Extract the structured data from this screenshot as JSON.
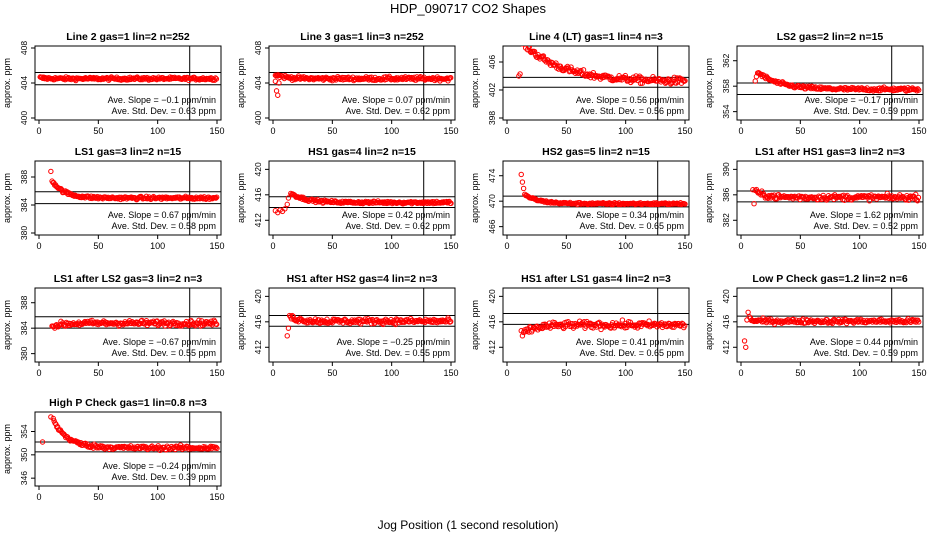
{
  "title": "HDP_090717  CO2 Shapes",
  "xlabel": "Jog Position (1 second resolution)",
  "ylabel": "approx. ppm",
  "slope_prefix": "Ave. Slope = ",
  "slope_unit": " ppm/min",
  "sd_prefix": "Ave. Std. Dev. = ",
  "sd_unit": "  ppm",
  "colors": {
    "points": "#ff0000",
    "axes": "#000000"
  },
  "chart_data": [
    {
      "type": "scatter",
      "title": "Line 2 gas=1 lin=2 n=252",
      "xlim": [
        0,
        150
      ],
      "xticks": [
        0,
        50,
        100,
        150
      ],
      "ylim": [
        400,
        408
      ],
      "yticks": [
        "400",
        "404",
        "408"
      ],
      "hlines": [
        405.2,
        403.8
      ],
      "vline": 127,
      "slope": "−0.1",
      "sd": "0.63",
      "shape": {
        "start": 1,
        "end": 150,
        "base": 404.5,
        "initial": 404.6,
        "decay": 5,
        "noise": 0.12
      }
    },
    {
      "type": "scatter",
      "title": "Line 3 gas=1 lin=3 n=252",
      "xlim": [
        0,
        150
      ],
      "xticks": [
        0,
        50,
        100,
        150
      ],
      "ylim": [
        400,
        408
      ],
      "yticks": [
        "400",
        "404",
        "408"
      ],
      "hlines": [
        405.2,
        403.8
      ],
      "vline": 127,
      "slope": "0.07",
      "sd": "0.62",
      "shape": {
        "start": 2,
        "end": 150,
        "base": 404.5,
        "initial": 405.0,
        "decay": 8,
        "noise": 0.15,
        "pre": [
          [
            2,
            404.2
          ],
          [
            3,
            403.1
          ],
          [
            4,
            402.6
          ],
          [
            5,
            404.0
          ]
        ]
      }
    },
    {
      "type": "scatter",
      "title": "Line 4 (LT) gas=1 lin=4 n=3",
      "xlim": [
        0,
        150
      ],
      "xticks": [
        0,
        50,
        100,
        150
      ],
      "ylim": [
        398,
        408
      ],
      "yticks": [
        "398",
        "402",
        "406"
      ],
      "hlines": [
        403.8,
        402.4
      ],
      "vline": 127,
      "slope": "0.56",
      "sd": "0.56",
      "shape": {
        "start": 12,
        "end": 150,
        "base": 403.2,
        "initial": 409,
        "decay": 32,
        "noise": 0.35,
        "pre": [
          [
            10,
            404.0
          ],
          [
            11,
            404.3
          ]
        ]
      }
    },
    {
      "type": "scatter",
      "title": "LS2 gas=2 lin=2 n=15",
      "xlim": [
        0,
        150
      ],
      "xticks": [
        0,
        50,
        100,
        150
      ],
      "ylim": [
        353,
        364
      ],
      "yticks": [
        "354",
        "358",
        "362"
      ],
      "hlines": [
        358.5,
        356.7
      ],
      "vline": 127,
      "slope": "−0.17",
      "sd": "0.59",
      "shape": {
        "start": 14,
        "end": 150,
        "base": 357.5,
        "initial": 360.2,
        "decay": 18,
        "noise": 0.2,
        "pre": [
          [
            12,
            358.8
          ],
          [
            13,
            359.5
          ]
        ]
      }
    },
    {
      "type": "scatter",
      "title": "LS1 gas=3 lin=2 n=15",
      "xlim": [
        0,
        150
      ],
      "xticks": [
        0,
        50,
        100,
        150
      ],
      "ylim": [
        380,
        390
      ],
      "yticks": [
        "380",
        "384",
        "388"
      ],
      "hlines": [
        385.9,
        384.2
      ],
      "vline": 127,
      "slope": "0.67",
      "sd": "0.58",
      "shape": {
        "start": 11,
        "end": 150,
        "base": 385.0,
        "initial": 387.5,
        "decay": 10,
        "noise": 0.15,
        "pre": [
          [
            10,
            388.8
          ]
        ]
      }
    },
    {
      "type": "scatter",
      "title": "HS1 gas=4 lin=2 n=15",
      "xlim": [
        0,
        150
      ],
      "xticks": [
        0,
        50,
        100,
        150
      ],
      "ylim": [
        410,
        421
      ],
      "yticks": [
        "412",
        "416",
        "420"
      ],
      "hlines": [
        415.7,
        414.0
      ],
      "vline": 127,
      "slope": "0.42",
      "sd": "0.62",
      "shape": {
        "start": 15,
        "end": 150,
        "base": 414.8,
        "initial": 416.3,
        "decay": 12,
        "noise": 0.15,
        "pre": [
          [
            2,
            413.5
          ],
          [
            4,
            413.2
          ],
          [
            6,
            413.6
          ],
          [
            8,
            413.4
          ],
          [
            10,
            413.8
          ],
          [
            12,
            414.5
          ],
          [
            13,
            415.5
          ]
        ]
      }
    },
    {
      "type": "scatter",
      "title": "HS2 gas=5 lin=2 n=15",
      "xlim": [
        0,
        150
      ],
      "xticks": [
        0,
        50,
        100,
        150
      ],
      "ylim": [
        465,
        476
      ],
      "yticks": [
        "466",
        "470",
        "474"
      ],
      "hlines": [
        470.8,
        469.1
      ],
      "vline": 127,
      "slope": "0.34",
      "sd": "0.65",
      "shape": {
        "start": 15,
        "end": 150,
        "base": 469.6,
        "initial": 471.0,
        "decay": 12,
        "noise": 0.12,
        "pre": [
          [
            12,
            474.2
          ],
          [
            13,
            473.0
          ],
          [
            14,
            472.0
          ]
        ]
      }
    },
    {
      "type": "scatter",
      "title": "LS1 after HS1 gas=3 lin=2 n=3",
      "xlim": [
        0,
        150
      ],
      "xticks": [
        0,
        50,
        100,
        150
      ],
      "ylim": [
        380,
        391
      ],
      "yticks": [
        "382",
        "386",
        "390"
      ],
      "hlines": [
        386.6,
        384.9
      ],
      "vline": 127,
      "slope": "1.62",
      "sd": "0.52",
      "shape": {
        "start": 13,
        "end": 150,
        "base": 385.6,
        "initial": 386.4,
        "decay": 8,
        "noise": 0.3,
        "pre": [
          [
            10,
            386.8
          ],
          [
            11,
            384.6
          ],
          [
            12,
            386.7
          ]
        ]
      }
    },
    {
      "type": "scatter",
      "title": "LS1 after LS2 gas=3 lin=2 n=3",
      "xlim": [
        0,
        150
      ],
      "xticks": [
        0,
        50,
        100,
        150
      ],
      "ylim": [
        379,
        390
      ],
      "yticks": [
        "380",
        "384",
        "388"
      ],
      "hlines": [
        385.8,
        384.0
      ],
      "vline": 127,
      "slope": "−0.67",
      "sd": "0.55",
      "shape": {
        "start": 11,
        "end": 150,
        "base": 384.8,
        "initial": 384.3,
        "decay": 10,
        "noise": 0.3
      }
    },
    {
      "type": "scatter",
      "title": "HS1 after HS2 gas=4 lin=2 n=3",
      "xlim": [
        0,
        150
      ],
      "xticks": [
        0,
        50,
        100,
        150
      ],
      "ylim": [
        410,
        421
      ],
      "yticks": [
        "412",
        "416",
        "420"
      ],
      "hlines": [
        417.0,
        415.3
      ],
      "vline": 127,
      "slope": "−0.25",
      "sd": "0.55",
      "shape": {
        "start": 14,
        "end": 150,
        "base": 416.1,
        "initial": 416.8,
        "decay": 8,
        "noise": 0.3,
        "pre": [
          [
            12,
            413.8
          ],
          [
            13,
            415.0
          ]
        ]
      }
    },
    {
      "type": "scatter",
      "title": "HS1 after LS1 gas=4 lin=2 n=3",
      "xlim": [
        0,
        150
      ],
      "xticks": [
        0,
        50,
        100,
        150
      ],
      "ylim": [
        410,
        421
      ],
      "yticks": [
        "412",
        "416",
        "420"
      ],
      "hlines": [
        417.3,
        415.6
      ],
      "vline": 127,
      "slope": "0.41",
      "sd": "0.65",
      "shape": {
        "start": 14,
        "end": 150,
        "base": 415.5,
        "initial": 414.2,
        "decay": 10,
        "noise": 0.4,
        "pre": [
          [
            12,
            414.6
          ],
          [
            13,
            413.8
          ]
        ]
      }
    },
    {
      "type": "scatter",
      "title": "Low P Check gas=1.2 lin=2 n=6",
      "xlim": [
        0,
        150
      ],
      "xticks": [
        0,
        50,
        100,
        150
      ],
      "ylim": [
        410,
        421
      ],
      "yticks": [
        "412",
        "416",
        "420"
      ],
      "hlines": [
        416.9,
        415.2
      ],
      "vline": 127,
      "slope": "0.44",
      "sd": "0.59",
      "shape": {
        "start": 8,
        "end": 150,
        "base": 416.1,
        "initial": 416.3,
        "decay": 5,
        "noise": 0.25,
        "pre": [
          [
            3,
            413.0
          ],
          [
            4,
            412.0
          ],
          [
            5,
            416.3
          ],
          [
            6,
            417.5
          ],
          [
            7,
            416.8
          ]
        ]
      }
    },
    {
      "type": "scatter",
      "title": "High P Check gas=1 lin=0.8 n=3",
      "xlim": [
        0,
        150
      ],
      "xticks": [
        0,
        50,
        100,
        150
      ],
      "ylim": [
        345,
        357
      ],
      "yticks": [
        "346",
        "350",
        "354"
      ],
      "hlines": [
        352.2,
        350.5
      ],
      "vline": 127,
      "slope": "−0.24",
      "sd": "0.39",
      "shape": {
        "start": 12,
        "end": 150,
        "base": 351.2,
        "initial": 356.0,
        "decay": 12,
        "noise": 0.25,
        "pre": [
          [
            3,
            352.2
          ],
          [
            10,
            356.5
          ]
        ]
      }
    }
  ]
}
